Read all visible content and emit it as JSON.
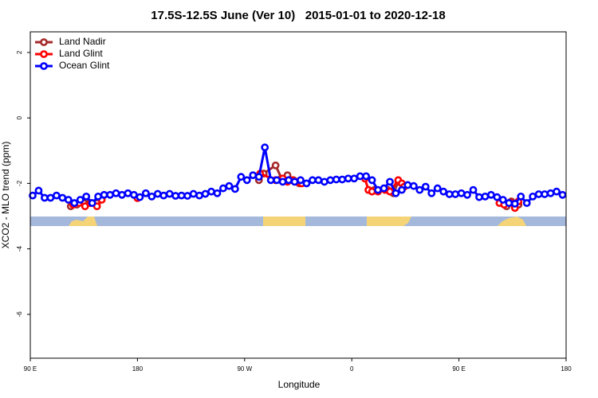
{
  "chart_data": {
    "type": "line",
    "title": "17.5S-12.5S June (Ver 10)   2015-01-01 to 2020-12-18",
    "x_label": "Longitude",
    "y_label": "XCO2 - MLO trend (ppm)",
    "xlim": [
      90,
      540
    ],
    "xticks": [
      {
        "value": 90,
        "label": "90 E"
      },
      180,
      {
        "value": 270,
        "label": "90 W"
      },
      {
        "value": 360,
        "label": "0"
      },
      {
        "value": 450,
        "label": "90 E"
      },
      {
        "value": 540,
        "label": "180"
      }
    ],
    "ylim": [
      -7.34,
      2.63
    ],
    "yticks": [
      2,
      0,
      -2,
      -4,
      -6
    ],
    "legend": "top-left",
    "series": [
      {
        "name": "Land Nadir",
        "color": "#a52a2a",
        "x": [
          124,
          129,
          135,
          140,
          146,
          200,
          282,
          286,
          296,
          301,
          306,
          311,
          316,
          350,
          374,
          379,
          390,
          395,
          399,
          450,
          490,
          494,
          500
        ],
        "values": [
          -2.7,
          -2.65,
          -2.6,
          -2.6,
          -2.6,
          null,
          -1.9,
          -1.7,
          -1.45,
          -1.85,
          -1.75,
          -1.9,
          -2.0,
          null,
          -2.2,
          -2.2,
          -2.2,
          -2.3,
          -1.95,
          null,
          -2.7,
          -2.55,
          -2.65
        ]
      },
      {
        "name": "Land Glint",
        "color": "#ff0000",
        "x": [
          126,
          131,
          136,
          141,
          146,
          150,
          160,
          180,
          200,
          283,
          296,
          302,
          306,
          310,
          314,
          318,
          340,
          371,
          374,
          377,
          382,
          388,
          392,
          399,
          402,
          404,
          450,
          484,
          488,
          494,
          497,
          500
        ],
        "values": [
          -2.65,
          -2.6,
          -2.7,
          -2.6,
          -2.7,
          -2.5,
          null,
          -2.45,
          null,
          -1.7,
          -1.9,
          -1.85,
          -1.95,
          -1.9,
          -1.95,
          -2.0,
          null,
          -1.85,
          -2.2,
          -2.25,
          -2.25,
          -2.2,
          -2.25,
          -1.9,
          -2.0,
          -2.1,
          null,
          -2.6,
          -2.65,
          -2.6,
          -2.75,
          -2.55
        ]
      },
      {
        "name": "Ocean Glint",
        "color": "#0000ff",
        "x": [
          92,
          97,
          102,
          107,
          112,
          117,
          122,
          127,
          132,
          137,
          142,
          147,
          152,
          157,
          162,
          167,
          172,
          177,
          182,
          187,
          192,
          197,
          202,
          207,
          212,
          217,
          222,
          227,
          232,
          237,
          242,
          247,
          252,
          257,
          262,
          267,
          272,
          277,
          282,
          287,
          292,
          297,
          302,
          307,
          312,
          317,
          322,
          327,
          332,
          337,
          342,
          347,
          352,
          357,
          362,
          367,
          372,
          377,
          382,
          387,
          392,
          397,
          402,
          407,
          412,
          417,
          422,
          427,
          432,
          437,
          442,
          447,
          452,
          457,
          462,
          467,
          472,
          477,
          482,
          487,
          492,
          497,
          502,
          507,
          512,
          517,
          522,
          527,
          532,
          537
        ],
        "values": [
          -2.37,
          -2.22,
          -2.44,
          -2.44,
          -2.37,
          -2.44,
          -2.5,
          -2.6,
          -2.5,
          -2.4,
          -2.6,
          -2.4,
          -2.35,
          -2.35,
          -2.3,
          -2.35,
          -2.3,
          -2.35,
          -2.42,
          -2.3,
          -2.4,
          -2.32,
          -2.37,
          -2.32,
          -2.38,
          -2.37,
          -2.38,
          -2.32,
          -2.37,
          -2.32,
          -2.25,
          -2.3,
          -2.15,
          -2.08,
          -2.17,
          -1.8,
          -1.9,
          -1.75,
          -1.8,
          -0.9,
          -1.9,
          -1.9,
          -1.95,
          -1.9,
          -1.95,
          -1.9,
          -2.0,
          -1.9,
          -1.9,
          -1.95,
          -1.9,
          -1.88,
          -1.88,
          -1.85,
          -1.85,
          -1.78,
          -1.78,
          -1.9,
          -2.2,
          -2.15,
          -1.95,
          -2.3,
          -2.2,
          -2.05,
          -2.08,
          -2.2,
          -2.1,
          -2.3,
          -2.15,
          -2.25,
          -2.33,
          -2.33,
          -2.3,
          -2.35,
          -2.2,
          -2.42,
          -2.4,
          -2.35,
          -2.42,
          -2.5,
          -2.6,
          -2.62,
          -2.4,
          -2.6,
          -2.4,
          -2.33,
          -2.33,
          -2.3,
          -2.25,
          -2.35
        ]
      }
    ]
  }
}
